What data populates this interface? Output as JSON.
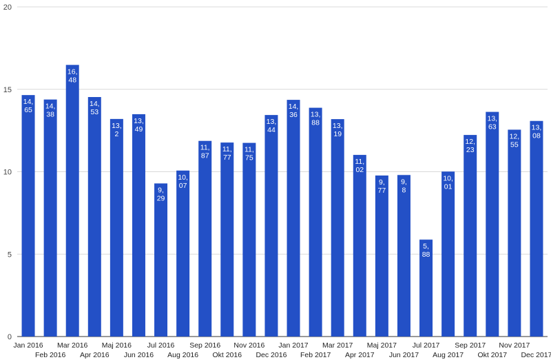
{
  "chart_data": {
    "type": "bar",
    "categories": [
      "Jan 2016",
      "Feb 2016",
      "Mar 2016",
      "Apr 2016",
      "Maj 2016",
      "Jun 2016",
      "Jul 2016",
      "Aug 2016",
      "Sep 2016",
      "Okt 2016",
      "Nov 2016",
      "Dec 2016",
      "Jan 2017",
      "Feb 2017",
      "Mar 2017",
      "Apr 2017",
      "Maj 2017",
      "Jun 2017",
      "Jul 2017",
      "Aug 2017",
      "Sep 2017",
      "Okt 2017",
      "Nov 2017",
      "Dec 2017"
    ],
    "values": [
      14.65,
      14.38,
      16.48,
      14.53,
      13.2,
      13.49,
      9.29,
      10.07,
      11.87,
      11.77,
      11.75,
      13.44,
      14.36,
      13.88,
      13.19,
      11.02,
      9.77,
      9.8,
      5.88,
      10.01,
      12.23,
      13.63,
      12.55,
      13.08
    ],
    "data_labels": [
      "14,65",
      "14,38",
      "16,48",
      "14,53",
      "13,2",
      "13,49",
      "9,29",
      "10,07",
      "11,87",
      "11,77",
      "11,75",
      "13,44",
      "14,36",
      "13,88",
      "13,19",
      "11,02",
      "9,77",
      "9,8",
      "5,88",
      "10,01",
      "12,23",
      "13,63",
      "12,55",
      "13,08"
    ],
    "y_ticks": [
      "0",
      "5",
      "10",
      "15",
      "20"
    ],
    "ylim": [
      0,
      20
    ],
    "grid": true,
    "legend": "none",
    "bar_color": "#2350c6"
  }
}
